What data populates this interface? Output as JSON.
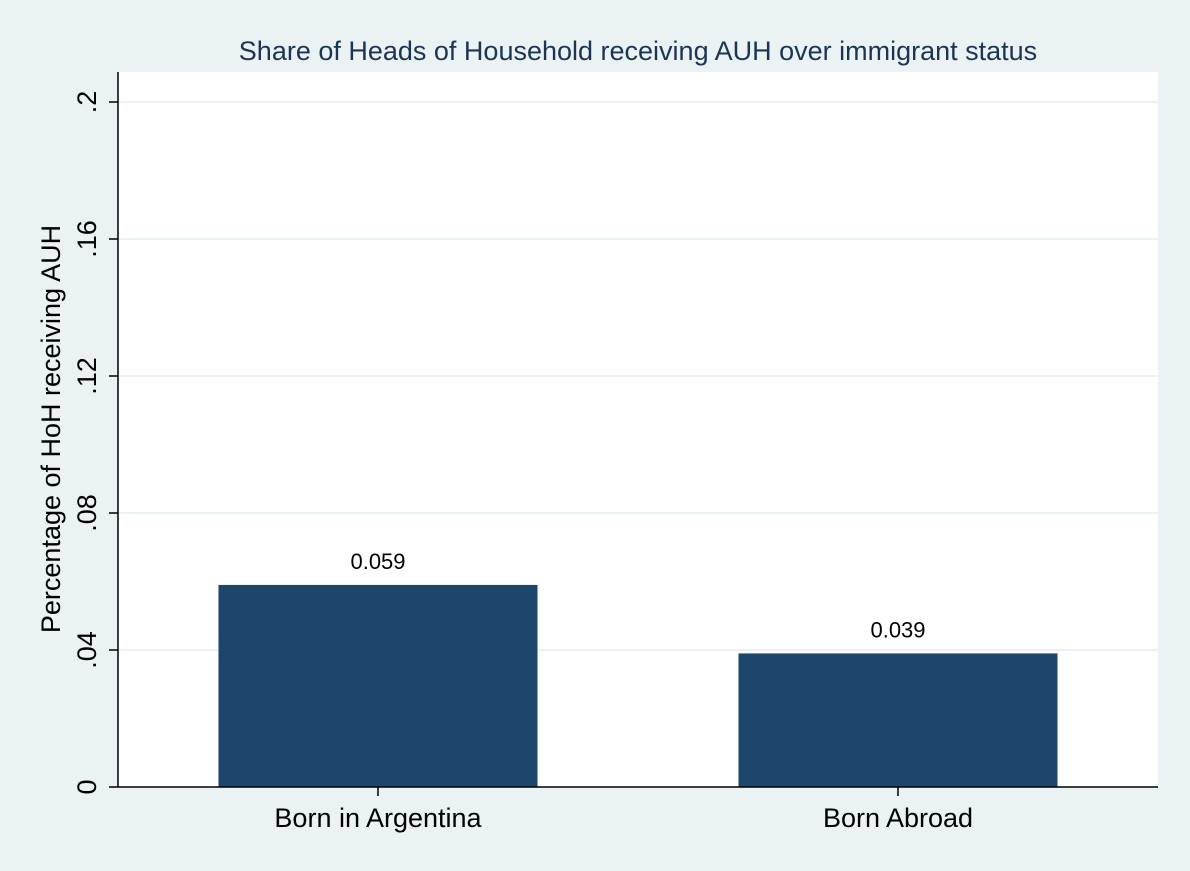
{
  "chart_data": {
    "type": "bar",
    "title": "Share of Heads of Household receiving AUH over immigrant status",
    "ylabel": "Percentage of HoH receiving AUH",
    "xlabel": "",
    "categories": [
      "Born in Argentina",
      "Born Abroad"
    ],
    "values": [
      0.059,
      0.039
    ],
    "value_labels": [
      "0.059",
      "0.039"
    ],
    "ylim": [
      0,
      0.2
    ],
    "yticks": [
      0,
      0.04,
      0.08,
      0.12,
      0.16,
      0.2
    ],
    "ytick_labels": [
      "0",
      ".04",
      ".08",
      ".12",
      ".16",
      ".2"
    ],
    "grid": true,
    "colors": {
      "bar": "#1c466b",
      "page_background": "#eaf2f3",
      "plot_background": "#ffffff",
      "grid": "#eaf2f3",
      "title": "#1c3553",
      "text": "#000000",
      "axis": "#000000"
    }
  }
}
